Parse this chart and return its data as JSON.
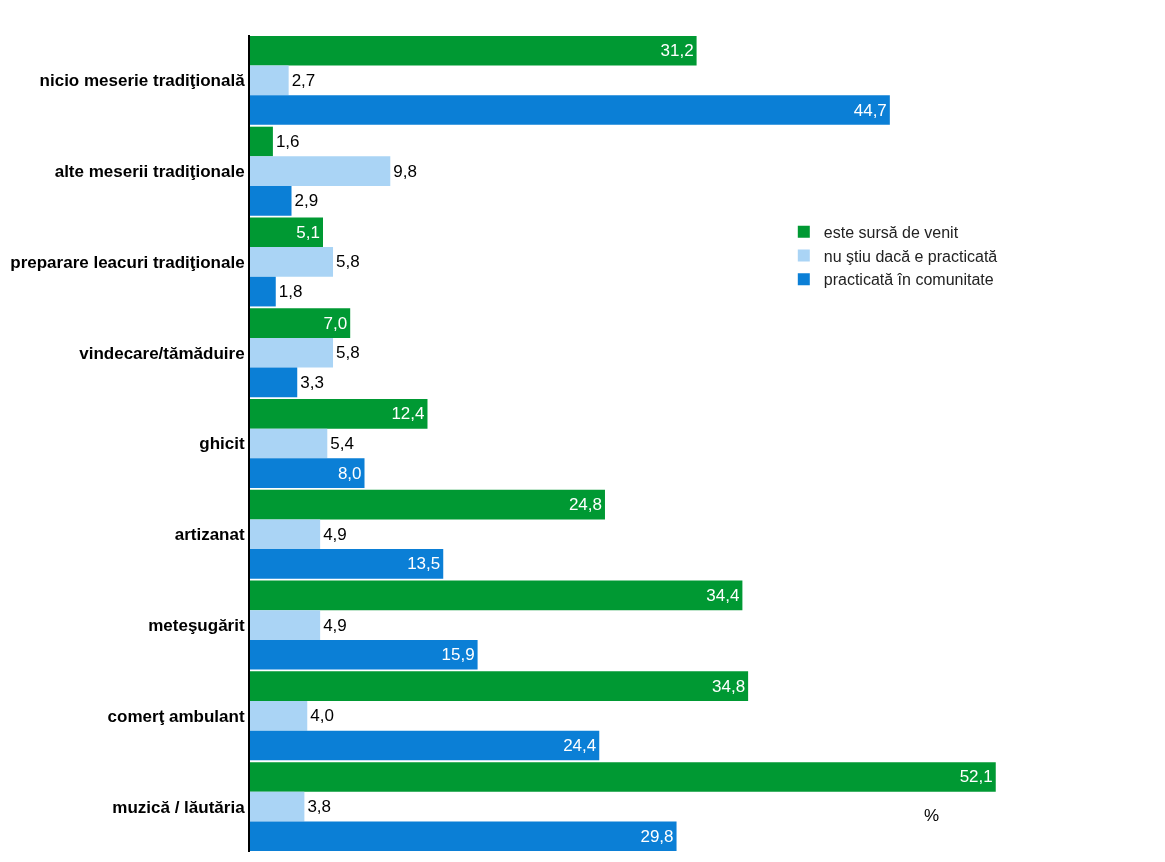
{
  "chart_data": {
    "type": "bar",
    "orientation": "horizontal",
    "categories": [
      "nicio meserie tradiţională",
      "alte meserii tradiţionale",
      "preparare leacuri tradiţionale",
      "vindecare/tămăduire",
      "ghicit",
      "artizanat",
      "meteşugărit",
      "comerţ ambulant",
      "muzică / lăutăria"
    ],
    "series": [
      {
        "name": "este sursă de venit",
        "color": "#009933",
        "values": [
          31.2,
          1.6,
          5.1,
          7.0,
          12.4,
          24.8,
          34.4,
          34.8,
          52.1
        ],
        "value_labels": [
          "31,2",
          "1,6",
          "5,1",
          "7,0",
          "12,4",
          "24,8",
          "34,4",
          "34,8",
          "52,1"
        ]
      },
      {
        "name": "nu ştiu dacă e practicată",
        "color": "#aad4f5",
        "values": [
          2.7,
          9.8,
          5.8,
          5.8,
          5.4,
          4.9,
          4.9,
          4.0,
          3.8
        ],
        "value_labels": [
          "2,7",
          "9,8",
          "5,8",
          "5,8",
          "5,4",
          "4,9",
          "4,9",
          "4,0",
          "3,8"
        ]
      },
      {
        "name": "practicată în comunitate",
        "color": "#0b7fd6",
        "values": [
          44.7,
          2.9,
          1.8,
          3.3,
          8.0,
          13.5,
          15.9,
          24.4,
          29.8
        ],
        "value_labels": [
          "44,7",
          "2,9",
          "1,8",
          "3,3",
          "8,0",
          "13,5",
          "15,9",
          "24,4",
          "29,8"
        ]
      }
    ],
    "tick_labels": "y",
    "legend": "right",
    "annotations": [
      "%"
    ]
  }
}
